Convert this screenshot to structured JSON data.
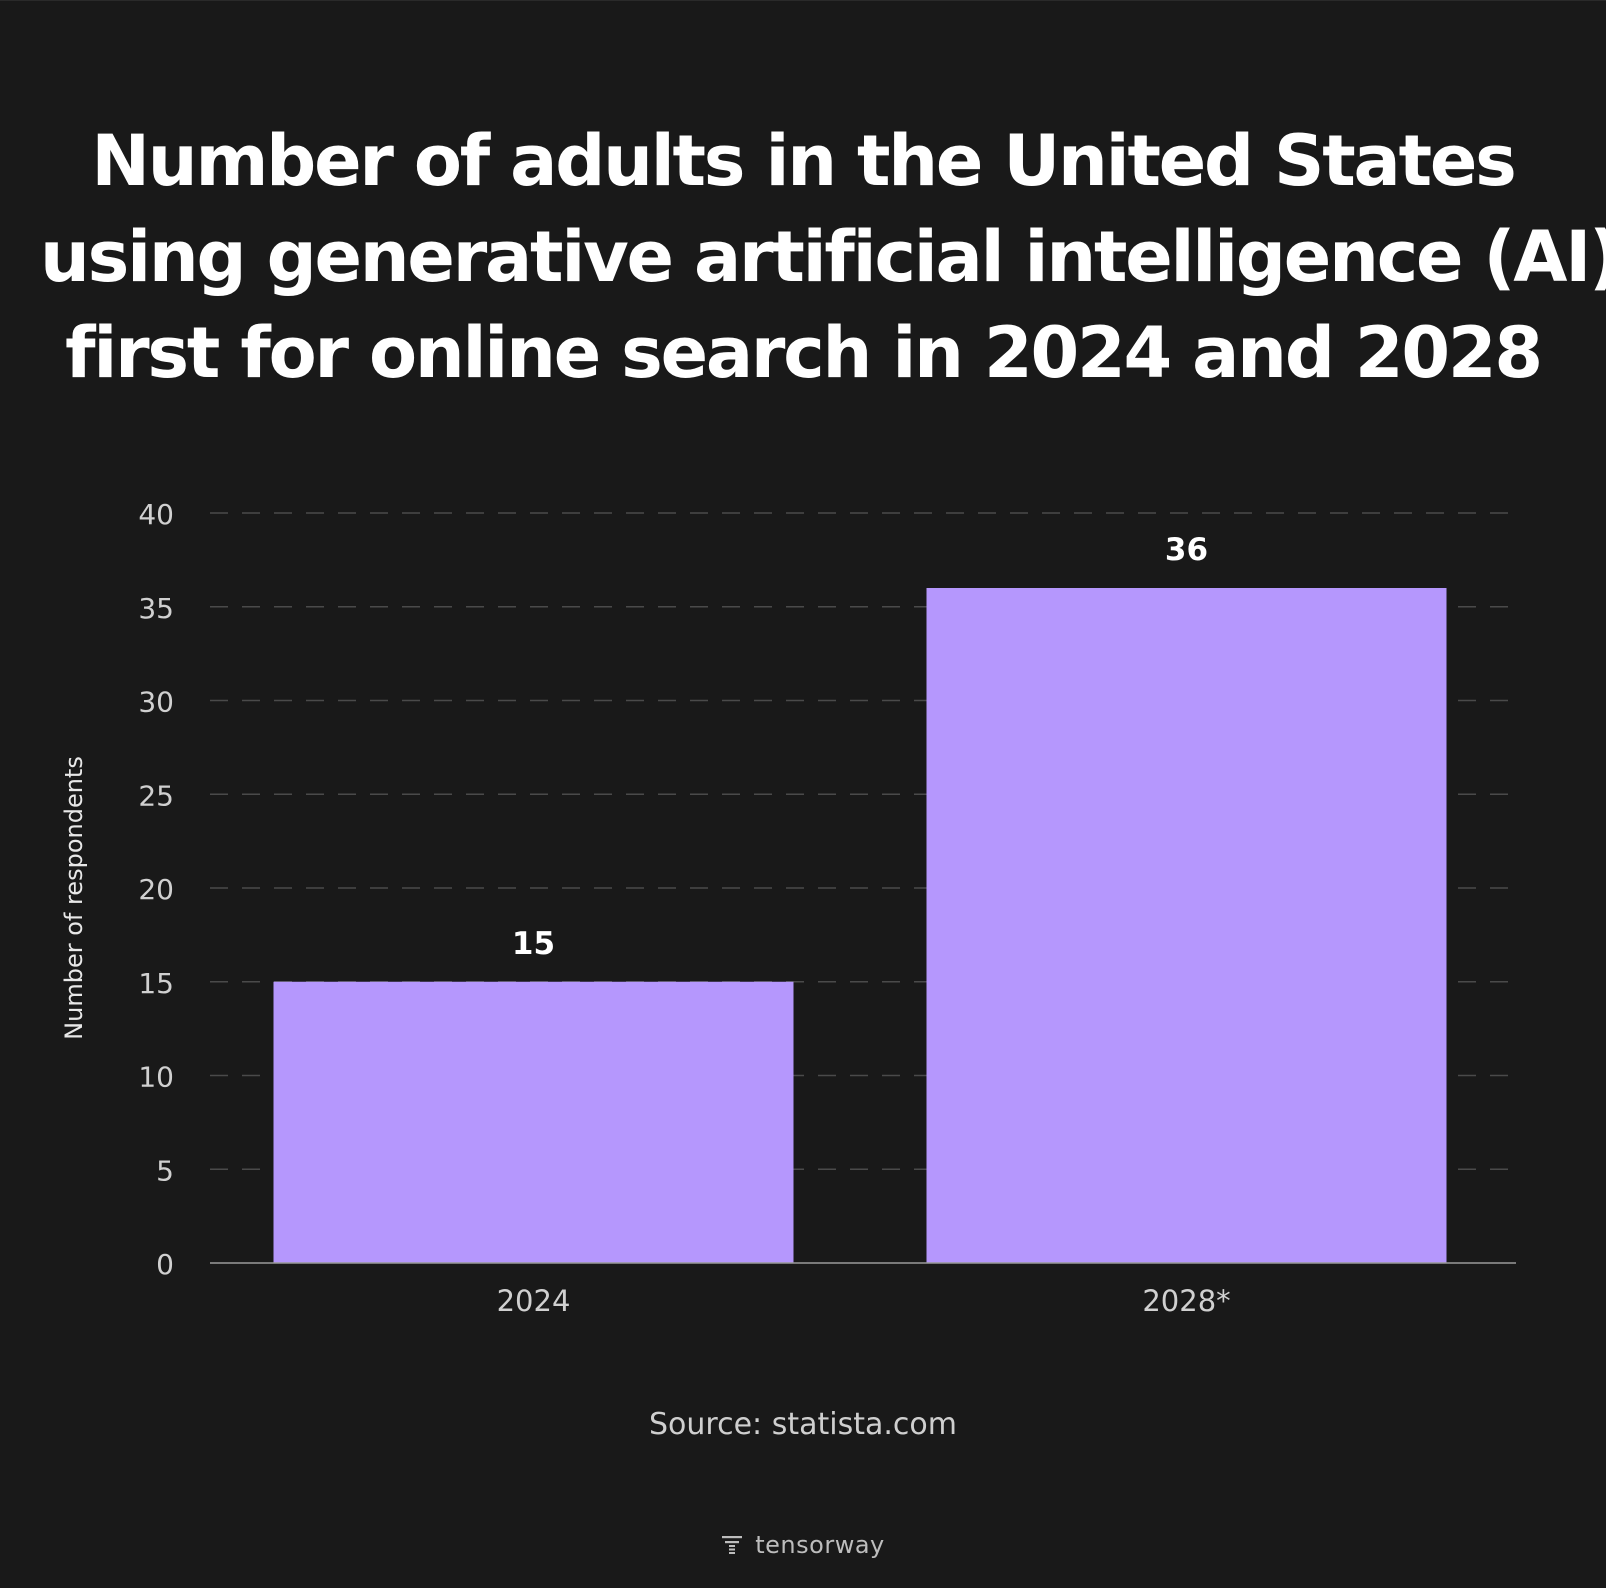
{
  "chart_data": {
    "type": "bar",
    "title_lines": [
      "Number of adults in the United States",
      "using generative artificial intelligence (AI)",
      "first for online search in 2024 and 2028"
    ],
    "categories": [
      "2024",
      "2028*"
    ],
    "values": [
      15,
      36
    ],
    "data_labels": [
      "15",
      "36"
    ],
    "ylabel": "Number of respondents",
    "xlabel": "",
    "ylim": [
      0,
      40
    ],
    "yticks": [
      0,
      5,
      10,
      15,
      20,
      25,
      30,
      35,
      40
    ],
    "grid": true,
    "grid_style": "dashed",
    "bar_color": "#b597fd",
    "background_color": "#191919"
  },
  "source": "Source: statista.com",
  "brand": {
    "name": "tensorway",
    "icon": "tensorway-logo-icon"
  }
}
